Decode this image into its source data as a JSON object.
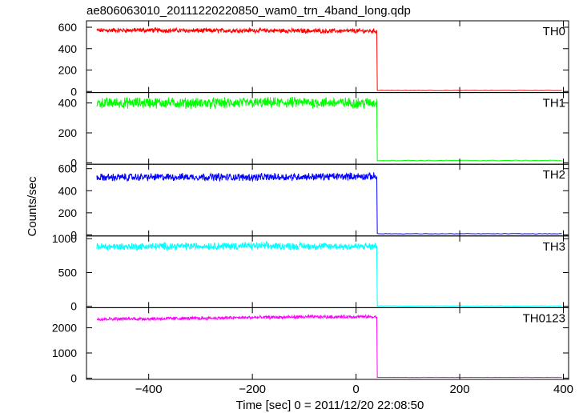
{
  "title": "ae806063010_20111220220850_wam0_trn_4band_long.qdp",
  "xlabel": "Time [sec] 0 = 2011/12/20 22:08:50",
  "ylabel": "Counts/sec",
  "chart_data": {
    "type": "line",
    "title": "ae806063010_20111220220850_wam0_trn_4band_long.qdp",
    "xlabel": "Time [sec] 0 = 2011/12/20 22:08:50",
    "ylabel": "Counts/sec",
    "xlim": [
      -520,
      410
    ],
    "xticks": [
      -400,
      -200,
      0,
      200,
      400
    ],
    "xtick_labels": [
      "−400",
      "−200",
      "0",
      "200",
      "400"
    ],
    "x": [
      -500,
      -400,
      -300,
      -200,
      -100,
      0,
      40,
      41,
      100,
      200,
      300,
      400
    ],
    "panels": [
      {
        "name": "TH0",
        "color": "#ff0000",
        "ylim": [
          -10,
          660
        ],
        "yticks": [
          0,
          200,
          400,
          600
        ],
        "values": [
          570,
          572,
          568,
          570,
          566,
          565,
          565,
          10,
          9,
          9,
          9,
          9
        ]
      },
      {
        "name": "TH1",
        "color": "#00ff00",
        "ylim": [
          -10,
          470
        ],
        "yticks": [
          0,
          200,
          400
        ],
        "values": [
          400,
          402,
          398,
          400,
          404,
          400,
          400,
          15,
          15,
          15,
          15,
          15
        ]
      },
      {
        "name": "TH2",
        "color": "#0000ff",
        "ylim": [
          -10,
          640
        ],
        "yticks": [
          0,
          200,
          400,
          600
        ],
        "values": [
          520,
          523,
          525,
          522,
          527,
          530,
          530,
          10,
          10,
          10,
          10,
          10
        ]
      },
      {
        "name": "TH3",
        "color": "#00ffff",
        "ylim": [
          -20,
          1040
        ],
        "yticks": [
          0,
          500,
          1000
        ],
        "values": [
          880,
          885,
          890,
          893,
          888,
          885,
          885,
          5,
          5,
          5,
          5,
          5
        ]
      },
      {
        "name": "TH0123",
        "color": "#ff00ff",
        "ylim": [
          -50,
          2800
        ],
        "yticks": [
          0,
          1000,
          2000
        ],
        "values": [
          2350,
          2360,
          2380,
          2410,
          2430,
          2440,
          2430,
          30,
          30,
          30,
          30,
          30
        ]
      }
    ],
    "noise": [
      18,
      30,
      28,
      45,
      55
    ],
    "grid": false,
    "legend": "none"
  }
}
